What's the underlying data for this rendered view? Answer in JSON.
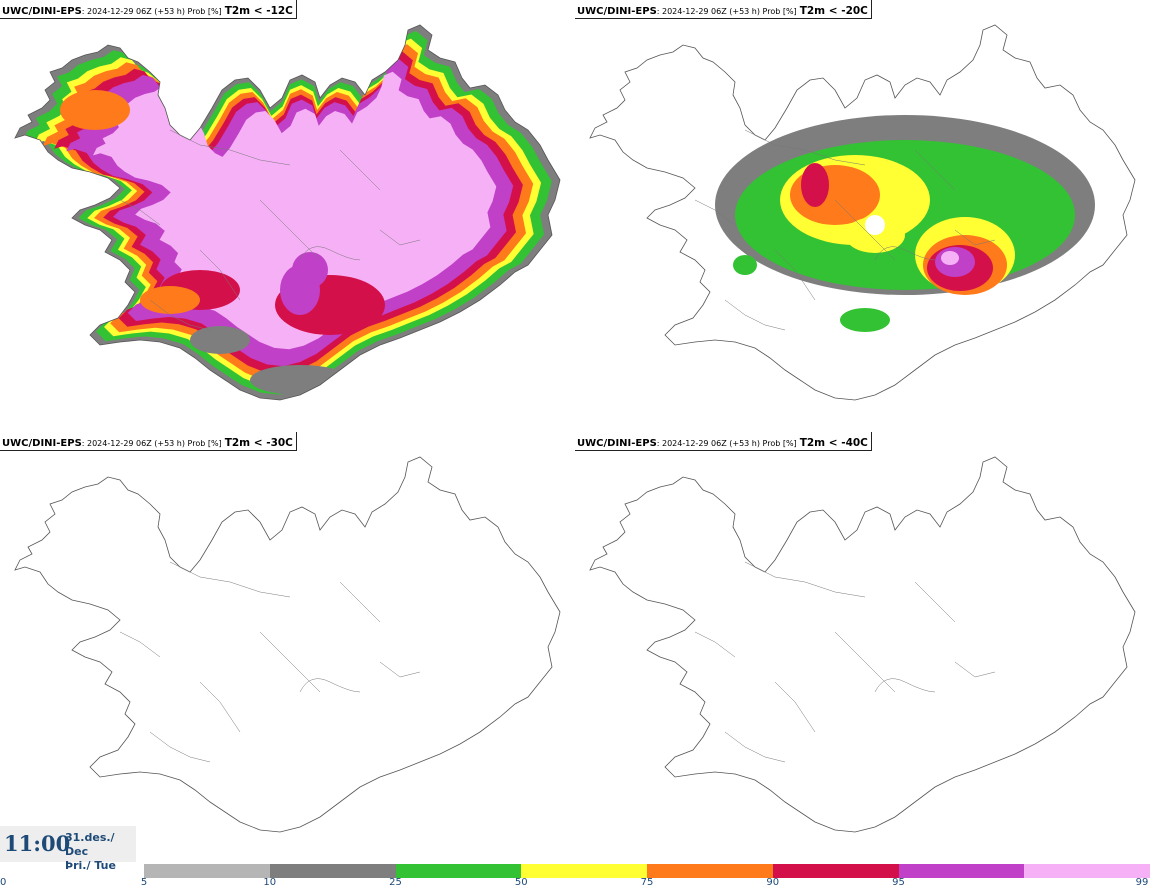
{
  "panels": [
    {
      "source": "UWC/DINI-EPS",
      "meta": ": 2024-12-29 06Z (+53 h) Prob [%]",
      "variable": "T2m < -12C"
    },
    {
      "source": "UWC/DINI-EPS",
      "meta": ": 2024-12-29 06Z (+53 h) Prob [%]",
      "variable": "T2m < -20C"
    },
    {
      "source": "UWC/DINI-EPS",
      "meta": ": 2024-12-29 06Z (+53 h) Prob [%]",
      "variable": "T2m < -30C"
    },
    {
      "source": "UWC/DINI-EPS",
      "meta": ": 2024-12-29 06Z (+53 h) Prob [%]",
      "variable": "T2m < -40C"
    }
  ],
  "valid_time": {
    "time": "11:00",
    "date_line1": "31.des./ Dec",
    "date_line2": "Þri./ Tue"
  },
  "legend": {
    "ticks": [
      "0",
      "5",
      "10",
      "25",
      "50",
      "75",
      "90",
      "95",
      "99"
    ],
    "colors": [
      "#b5b5b5",
      "#7e7e7e",
      "#33c233",
      "#ffff33",
      "#ff7a1a",
      "#d4104a",
      "#c040c8",
      "#f6b0f6"
    ]
  },
  "colors": {
    "time_text": "#1e4a78"
  }
}
